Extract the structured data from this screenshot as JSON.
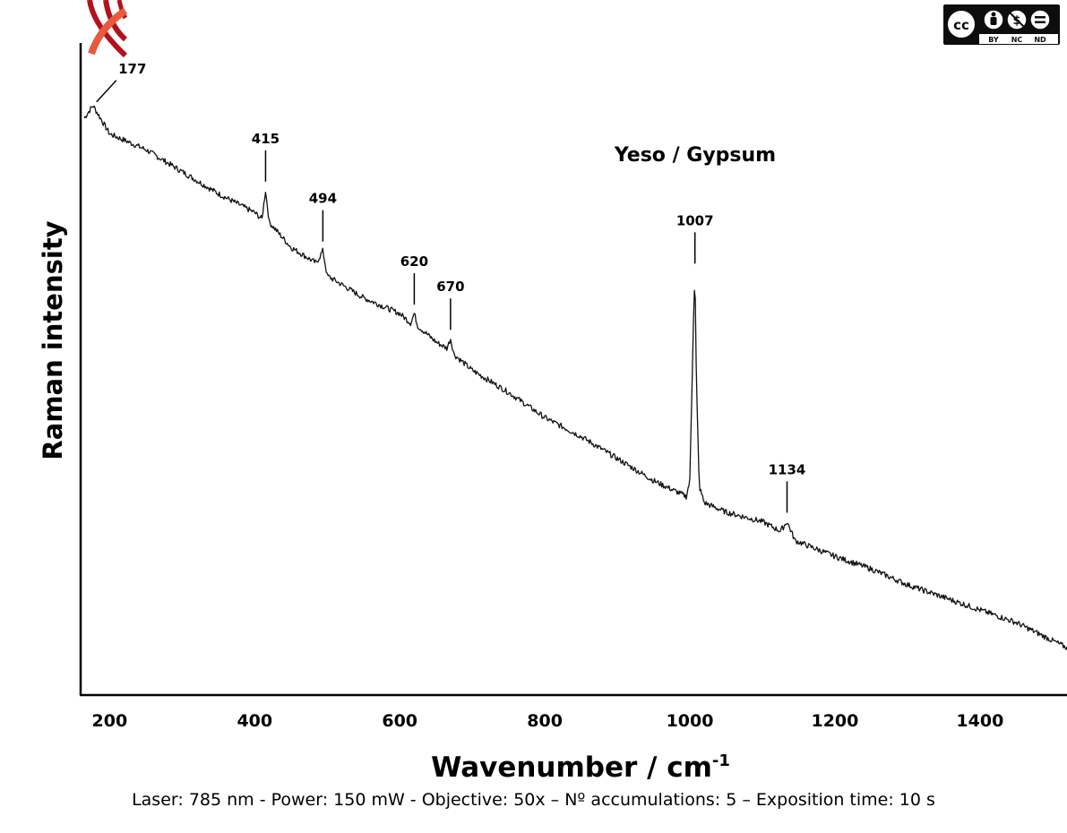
{
  "chart_data": {
    "type": "line",
    "title": "Yeso / Gypsum",
    "xlabel": "Wavenumber  / cm",
    "xlabel_superscript": "-1",
    "ylabel": "Raman  intensity",
    "xlim": [
      160,
      1520
    ],
    "ylim": [
      0,
      100
    ],
    "x_ticks": [
      200,
      400,
      600,
      800,
      1000,
      1200,
      1400
    ],
    "y_ticks_shown": false,
    "grid": false,
    "legend": "none",
    "series": [
      {
        "x": [
          165,
          177,
          200,
          250,
          300,
          350,
          400,
          410,
          415,
          420,
          450,
          485,
          494,
          500,
          550,
          600,
          615,
          620,
          625,
          650,
          665,
          670,
          675,
          700,
          750,
          800,
          850,
          900,
          950,
          995,
          1000,
          1005,
          1007,
          1009,
          1013,
          1020,
          1050,
          1100,
          1125,
          1134,
          1145,
          1200,
          1250,
          1300,
          1350,
          1400,
          1450,
          1520
        ],
        "y": [
          91.5,
          93.5,
          89,
          86.5,
          83,
          79.5,
          76.5,
          75.5,
          80,
          75,
          71,
          68.5,
          70.5,
          66.5,
          63,
          60.5,
          59,
          60.5,
          58.5,
          56,
          55,
          56.5,
          54,
          51.5,
          48,
          44,
          41,
          37.5,
          34,
          31.5,
          34,
          60,
          67,
          50,
          33,
          30.5,
          29,
          27.5,
          26,
          27.5,
          24.5,
          22,
          20,
          17.5,
          15.5,
          13.5,
          11.5,
          7.5
        ]
      }
    ],
    "peak_labels": [
      {
        "x": 177,
        "label": "177"
      },
      {
        "x": 415,
        "label": "415"
      },
      {
        "x": 494,
        "label": "494"
      },
      {
        "x": 620,
        "label": "620"
      },
      {
        "x": 670,
        "label": "670"
      },
      {
        "x": 1007,
        "label": "1007"
      },
      {
        "x": 1134,
        "label": "1134"
      }
    ]
  },
  "caption": "Laser: 785 nm - Power: 150 mW - Objective: 50x – Nº accumulations: 5 – Exposition time: 10 s",
  "license_badge": {
    "text": "cc by nc nd",
    "labels": [
      "BY",
      "NC",
      "ND"
    ],
    "icons": [
      "cc-icon",
      "by-person-icon",
      "nc-dollar-icon",
      "nd-equals-icon"
    ]
  },
  "logo": {
    "name": "red-stripes-logo",
    "colors": [
      "#b3121c",
      "#e85a3c"
    ]
  },
  "colors": {
    "line": "#111111",
    "axis": "#000000",
    "background": "#ffffff"
  }
}
